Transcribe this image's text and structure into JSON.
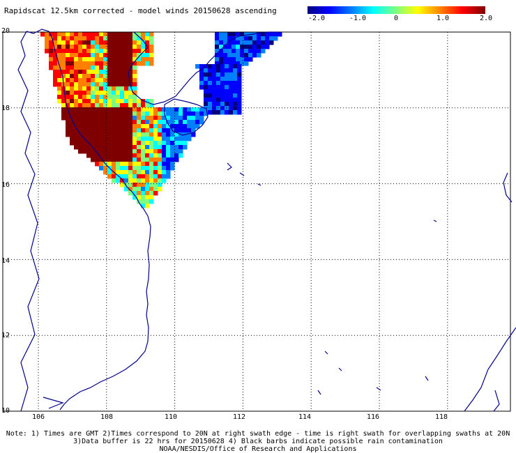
{
  "title": "Rapidscat 12.5km corrected - model winds 20150628 ascending",
  "colorbar": {
    "ticks": [
      "-2.0",
      "-1.0",
      "0",
      "1.0",
      "2.0"
    ],
    "range": [
      -2.0,
      2.0
    ],
    "colors": [
      "#00007f",
      "#0000ff",
      "#007fff",
      "#00ffff",
      "#7fff7f",
      "#ffff00",
      "#ff7f00",
      "#ff0000",
      "#7f0000"
    ]
  },
  "axes": {
    "lat_labels": [
      "20",
      "18",
      "16",
      "14",
      "12",
      "10"
    ],
    "lon_labels": [
      "106",
      "108",
      "110",
      "112",
      "114",
      "116",
      "118"
    ],
    "lat_range": [
      10,
      20
    ],
    "lon_range": [
      105,
      120
    ],
    "grid": true
  },
  "notes": {
    "line1": "Note: 1) Times are GMT 2)Times correspond to 20N at right swath edge - time is right swath for overlapping swaths at 20N",
    "line2": "3)Data buffer is 22 hrs for 20150628 4) Black barbs indicate possible rain contamination",
    "line3": "NOAA/NESDIS/Office of Research and Applications"
  }
}
